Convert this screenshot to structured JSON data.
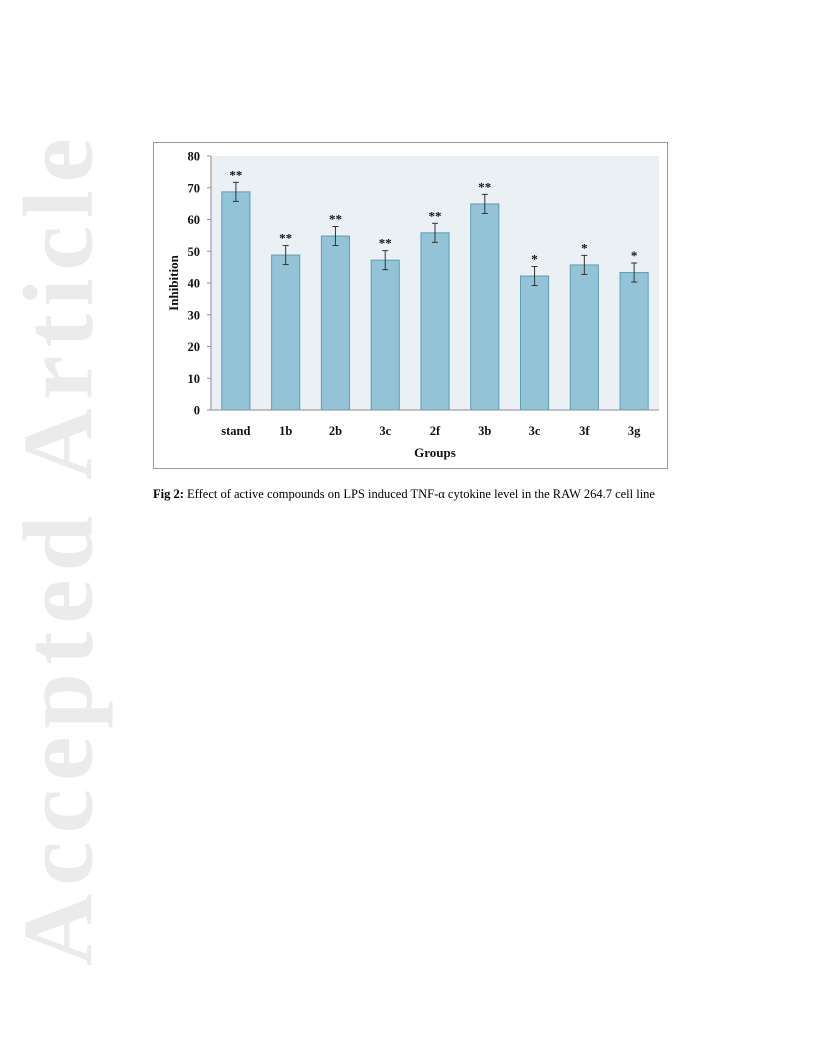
{
  "watermark": "Accepted Article",
  "caption": {
    "label": "Fig 2:",
    "text": " Effect of active compounds on LPS induced TNF-α cytokine level in the RAW 264.7 cell line"
  },
  "chart_data": {
    "type": "bar",
    "categories": [
      "stand",
      "1b",
      "2b",
      "3c",
      "2f",
      "3b",
      "3c",
      "3f",
      "3g"
    ],
    "values": [
      68.7,
      48.8,
      54.8,
      47.2,
      55.8,
      64.9,
      42.2,
      45.7,
      43.3
    ],
    "errors": [
      3,
      3,
      3,
      3,
      3,
      3,
      3,
      3,
      3
    ],
    "significance": [
      "**",
      "**",
      "**",
      "**",
      "**",
      "**",
      "*",
      "*",
      "*"
    ],
    "xlabel": "Groups",
    "ylabel": "Inhibition",
    "ylim": [
      0,
      80
    ],
    "yticks": [
      0,
      10,
      20,
      30,
      40,
      50,
      60,
      70,
      80
    ],
    "grid": false,
    "colors": {
      "bar_fill": "#92c3d6",
      "bar_stroke": "#5a9fb6",
      "plot_background": "#eaf0f4",
      "axis": "#8c8c8c"
    }
  }
}
